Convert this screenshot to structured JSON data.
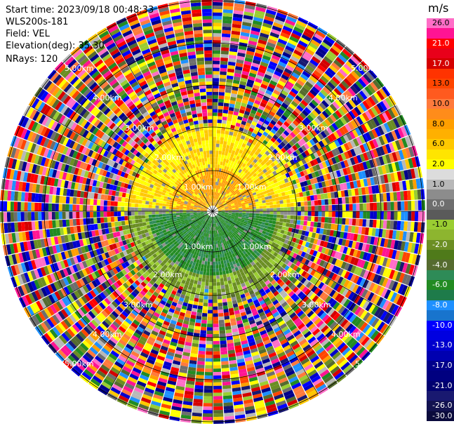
{
  "info": {
    "start_time": "Start time: 2023/09/18 00:48:33",
    "site": "WLS200s-181",
    "field": "Field: VEL",
    "elevation": "Elevation(deg): 35.30",
    "nrays": "NRays: 120"
  },
  "colorbar": {
    "unit": "m/s",
    "segments": [
      {
        "color": "#ff6ec7",
        "label": "26.0"
      },
      {
        "color": "#ff1493",
        "label": ""
      },
      {
        "color": "#ff0000",
        "label": "21.0"
      },
      {
        "color": "#e8001a",
        "label": ""
      },
      {
        "color": "#d40000",
        "label": "17.0"
      },
      {
        "color": "#ff3300",
        "label": ""
      },
      {
        "color": "#ff4500",
        "label": "13.0"
      },
      {
        "color": "#ff5a1f",
        "label": ""
      },
      {
        "color": "#ff7a3c",
        "label": "10.0"
      },
      {
        "color": "#ff8c1a",
        "label": ""
      },
      {
        "color": "#ff9f00",
        "label": "8.0"
      },
      {
        "color": "#ffb000",
        "label": ""
      },
      {
        "color": "#ffc800",
        "label": "6.0"
      },
      {
        "color": "#ffe500",
        "label": ""
      },
      {
        "color": "#ffff00",
        "label": "2.0"
      },
      {
        "color": "#dcdcdc",
        "label": ""
      },
      {
        "color": "#b8b8b8",
        "label": "1.0"
      },
      {
        "color": "#8c8c8c",
        "label": ""
      },
      {
        "color": "#6e6e6e",
        "label": "0.0"
      },
      {
        "color": "#5a5a5a",
        "label": ""
      },
      {
        "color": "#9acd32",
        "label": "-1.0"
      },
      {
        "color": "#8db52f",
        "label": ""
      },
      {
        "color": "#6b8e23",
        "label": "-2.0"
      },
      {
        "color": "#4f7a1a",
        "label": ""
      },
      {
        "color": "#556b2f",
        "label": "-4.0"
      },
      {
        "color": "#2e8b57",
        "label": ""
      },
      {
        "color": "#228b22",
        "label": "-6.0"
      },
      {
        "color": "#1e7b4a",
        "label": ""
      },
      {
        "color": "#1e90ff",
        "label": "-8.0"
      },
      {
        "color": "#1874cd",
        "label": ""
      },
      {
        "color": "#0000ff",
        "label": "-10.0"
      },
      {
        "color": "#0000e0",
        "label": ""
      },
      {
        "color": "#0000cd",
        "label": "-13.0"
      },
      {
        "color": "#0000b0",
        "label": ""
      },
      {
        "color": "#00008b",
        "label": "-17.0"
      },
      {
        "color": "#000080",
        "label": ""
      },
      {
        "color": "#000070",
        "label": "-21.0"
      },
      {
        "color": "#191970",
        "label": ""
      },
      {
        "color": "#121250",
        "label": "-26.0"
      },
      {
        "color": "#0a0a3c",
        "label": "-30.0"
      }
    ]
  },
  "range_labels": {
    "r1": "1.00km",
    "r2": "2.00km",
    "r3": "3.00km",
    "r4": "4.00km",
    "r5": "5.00km"
  }
}
